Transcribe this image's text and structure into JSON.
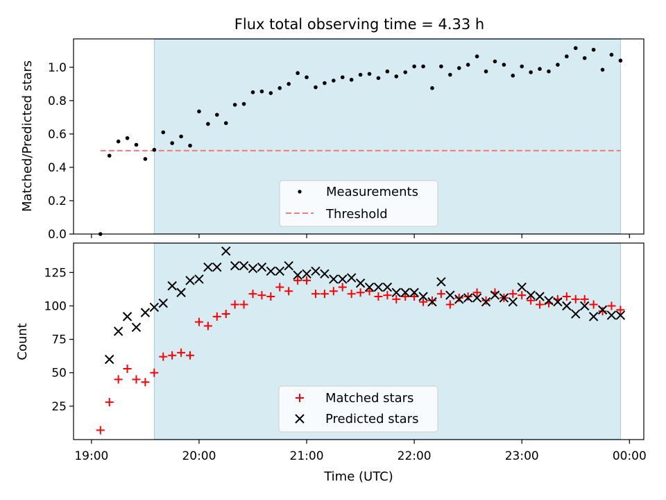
{
  "chart_data": {
    "title": "Flux total observing time = 4.33 h",
    "xlabel": "Time (UTC)",
    "x_ticks": [
      "19:00",
      "20:00",
      "21:00",
      "22:00",
      "23:00",
      "00:00"
    ],
    "x_tick_values_min": [
      0,
      60,
      120,
      180,
      240,
      300
    ],
    "x_range_min": [
      -10,
      308
    ],
    "shaded_interval_min": [
      35,
      295
    ],
    "shade_color": "#add8e6",
    "top": {
      "type": "scatter",
      "ylabel": "Matched/Predicted stars",
      "ylim": [
        0,
        1.17
      ],
      "y_ticks": [
        "0.0",
        "0.2",
        "0.4",
        "0.6",
        "0.8",
        "1.0"
      ],
      "y_tick_values": [
        0,
        0.2,
        0.4,
        0.6,
        0.8,
        1.0
      ],
      "threshold": {
        "value": 0.5,
        "x_range_min": [
          5,
          295
        ],
        "color": "#f08080"
      },
      "legend": {
        "placement": "lower center",
        "measurements_label": "Measurements",
        "threshold_label": "Threshold"
      },
      "series": [
        {
          "name": "Measurements",
          "color": "#000000",
          "points": [
            [
              5,
              0.0
            ],
            [
              10,
              0.47
            ],
            [
              15,
              0.555
            ],
            [
              20,
              0.575
            ],
            [
              25,
              0.535
            ],
            [
              30,
              0.45
            ],
            [
              35,
              0.505
            ],
            [
              40,
              0.61
            ],
            [
              45,
              0.545
            ],
            [
              50,
              0.585
            ],
            [
              55,
              0.53
            ],
            [
              60,
              0.735
            ],
            [
              65,
              0.66
            ],
            [
              70,
              0.715
            ],
            [
              75,
              0.665
            ],
            [
              80,
              0.775
            ],
            [
              85,
              0.78
            ],
            [
              90,
              0.85
            ],
            [
              95,
              0.855
            ],
            [
              100,
              0.845
            ],
            [
              105,
              0.875
            ],
            [
              110,
              0.9
            ],
            [
              115,
              0.965
            ],
            [
              120,
              0.94
            ],
            [
              125,
              0.88
            ],
            [
              130,
              0.905
            ],
            [
              135,
              0.92
            ],
            [
              140,
              0.94
            ],
            [
              145,
              0.925
            ],
            [
              150,
              0.955
            ],
            [
              155,
              0.96
            ],
            [
              160,
              0.935
            ],
            [
              165,
              0.975
            ],
            [
              170,
              0.945
            ],
            [
              175,
              0.97
            ],
            [
              180,
              1.005
            ],
            [
              185,
              1.005
            ],
            [
              190,
              0.875
            ],
            [
              195,
              1.005
            ],
            [
              200,
              0.955
            ],
            [
              205,
              0.995
            ],
            [
              210,
              1.015
            ],
            [
              215,
              1.065
            ],
            [
              220,
              0.975
            ],
            [
              225,
              1.035
            ],
            [
              230,
              1.015
            ],
            [
              235,
              0.95
            ],
            [
              240,
              1.005
            ],
            [
              245,
              0.97
            ],
            [
              250,
              0.99
            ],
            [
              255,
              0.975
            ],
            [
              260,
              1.015
            ],
            [
              265,
              1.065
            ],
            [
              270,
              1.115
            ],
            [
              275,
              1.055
            ],
            [
              280,
              1.105
            ],
            [
              285,
              0.985
            ],
            [
              290,
              1.075
            ],
            [
              295,
              1.04
            ]
          ]
        }
      ]
    },
    "bottom": {
      "type": "scatter",
      "ylabel": "Count",
      "ylim": [
        0,
        147
      ],
      "y_ticks": [
        "25",
        "50",
        "75",
        "100",
        "125"
      ],
      "y_tick_values": [
        25,
        50,
        75,
        100,
        125
      ],
      "legend": {
        "placement": "lower center",
        "matched_label": "Matched stars",
        "predicted_label": "Predicted stars"
      },
      "series": [
        {
          "name": "Matched stars",
          "color": "#ff0000",
          "marker": "+",
          "points": [
            [
              5,
              7
            ],
            [
              10,
              28
            ],
            [
              15,
              45
            ],
            [
              20,
              53
            ],
            [
              25,
              45
            ],
            [
              30,
              43
            ],
            [
              35,
              50
            ],
            [
              40,
              62
            ],
            [
              45,
              63
            ],
            [
              50,
              65
            ],
            [
              55,
              63
            ],
            [
              60,
              88
            ],
            [
              65,
              85
            ],
            [
              70,
              92
            ],
            [
              75,
              94
            ],
            [
              80,
              101
            ],
            [
              85,
              101
            ],
            [
              90,
              109
            ],
            [
              95,
              108
            ],
            [
              100,
              107
            ],
            [
              105,
              114
            ],
            [
              110,
              111
            ],
            [
              115,
              119
            ],
            [
              120,
              119
            ],
            [
              125,
              109
            ],
            [
              130,
              109
            ],
            [
              135,
              111
            ],
            [
              140,
              114
            ],
            [
              145,
              109
            ],
            [
              150,
              110
            ],
            [
              155,
              111
            ],
            [
              160,
              107
            ],
            [
              165,
              108
            ],
            [
              170,
              105
            ],
            [
              175,
              107
            ],
            [
              180,
              107
            ],
            [
              185,
              103
            ],
            [
              190,
              104
            ],
            [
              195,
              109
            ],
            [
              200,
              101
            ],
            [
              205,
              106
            ],
            [
              210,
              107
            ],
            [
              215,
              110
            ],
            [
              220,
              104
            ],
            [
              225,
              110
            ],
            [
              230,
              106
            ],
            [
              235,
              109
            ],
            [
              240,
              108
            ],
            [
              245,
              104
            ],
            [
              250,
              101
            ],
            [
              255,
              102
            ],
            [
              260,
              105
            ],
            [
              265,
              107
            ],
            [
              270,
              105
            ],
            [
              275,
              105
            ],
            [
              280,
              101
            ],
            [
              285,
              96
            ],
            [
              290,
              100
            ],
            [
              295,
              97
            ]
          ]
        },
        {
          "name": "Predicted stars",
          "color": "#000000",
          "marker": "x",
          "points": [
            [
              10,
              60
            ],
            [
              15,
              81
            ],
            [
              20,
              92
            ],
            [
              25,
              84
            ],
            [
              30,
              95
            ],
            [
              35,
              99
            ],
            [
              40,
              102
            ],
            [
              45,
              115
            ],
            [
              50,
              110
            ],
            [
              55,
              119
            ],
            [
              60,
              120
            ],
            [
              65,
              129
            ],
            [
              70,
              129
            ],
            [
              75,
              141
            ],
            [
              80,
              130
            ],
            [
              85,
              130
            ],
            [
              90,
              128
            ],
            [
              95,
              129
            ],
            [
              100,
              126
            ],
            [
              105,
              126
            ],
            [
              110,
              130
            ],
            [
              115,
              123
            ],
            [
              120,
              124
            ],
            [
              125,
              126
            ],
            [
              130,
              124
            ],
            [
              135,
              120
            ],
            [
              140,
              120
            ],
            [
              145,
              121
            ],
            [
              150,
              117
            ],
            [
              155,
              114
            ],
            [
              160,
              114
            ],
            [
              165,
              114
            ],
            [
              170,
              110
            ],
            [
              175,
              110
            ],
            [
              180,
              110
            ],
            [
              185,
              107
            ],
            [
              190,
              103
            ],
            [
              195,
              118
            ],
            [
              200,
              108
            ],
            [
              205,
              105
            ],
            [
              210,
              106
            ],
            [
              215,
              106
            ],
            [
              220,
              103
            ],
            [
              225,
              108
            ],
            [
              230,
              106
            ],
            [
              235,
              103
            ],
            [
              240,
              114
            ],
            [
              245,
              108
            ],
            [
              250,
              107
            ],
            [
              255,
              104
            ],
            [
              260,
              103
            ],
            [
              265,
              100
            ],
            [
              270,
              94
            ],
            [
              275,
              100
            ],
            [
              280,
              92
            ],
            [
              285,
              97
            ],
            [
              290,
              93
            ],
            [
              295,
              93
            ]
          ]
        }
      ]
    }
  }
}
